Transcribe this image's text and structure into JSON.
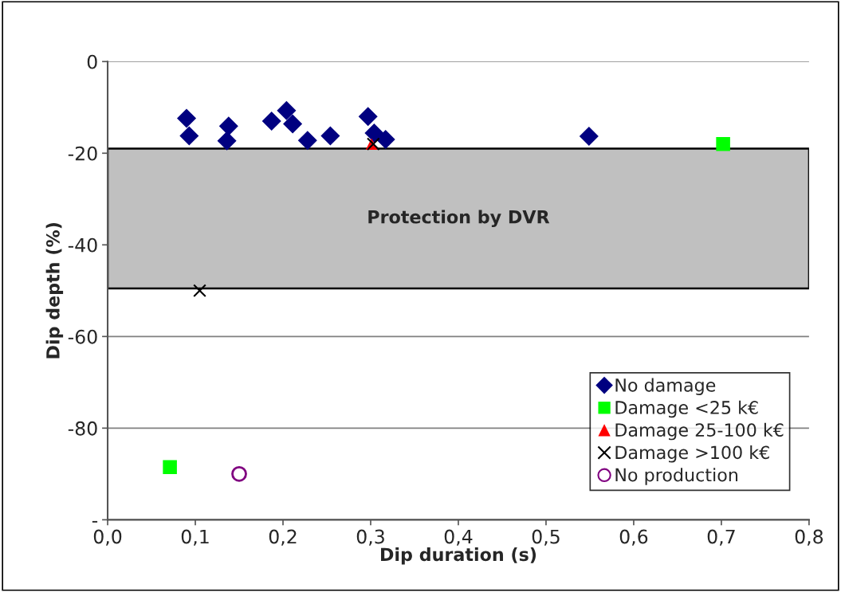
{
  "chart_data": {
    "type": "scatter",
    "xlabel": "Dip duration (s)",
    "ylabel": "Dip depth (%)",
    "xlim": [
      0,
      0.8
    ],
    "ylim": [
      -100,
      0
    ],
    "xticks": [
      {
        "value": 0,
        "label": "0,0"
      },
      {
        "value": 0.1,
        "label": "0,1"
      },
      {
        "value": 0.2,
        "label": "0,2"
      },
      {
        "value": 0.3,
        "label": "0,3"
      },
      {
        "value": 0.4,
        "label": "0,4"
      },
      {
        "value": 0.5,
        "label": "0,5"
      },
      {
        "value": 0.6,
        "label": "0,6"
      },
      {
        "value": 0.7,
        "label": "0,7"
      },
      {
        "value": 0.8,
        "label": "0,8"
      }
    ],
    "yticks": [
      0,
      -20,
      -40,
      -60,
      -80,
      {
        "value": -100,
        "label": "-"
      }
    ],
    "grid": "y",
    "legend": "bottom right",
    "bands": [
      {
        "axis": "y",
        "from": -49.5,
        "to": -19,
        "label": "Protection by DVR",
        "color": "#c0c0c0"
      }
    ],
    "series": [
      {
        "name": "No damage",
        "color": "#000080",
        "marker": "diamond",
        "x": [
          0.09,
          0.093,
          0.138,
          0.136,
          0.187,
          0.204,
          0.211,
          0.228,
          0.254,
          0.297,
          0.304,
          0.317,
          0.549
        ],
        "values": [
          -12.4,
          -16.2,
          -14.1,
          -17.3,
          -13.0,
          -10.7,
          -13.6,
          -17.2,
          -16.2,
          -12.0,
          -15.6,
          -17.0,
          -16.3
        ]
      },
      {
        "name": "Damage <25 k€",
        "color": "#00ff00",
        "marker": "square",
        "x": [
          0.702,
          0.071
        ],
        "values": [
          -18,
          -88.5
        ]
      },
      {
        "name": "Damage 25-100 k€",
        "color": "#ff0000",
        "marker": "triangle",
        "x": [
          0.301
        ],
        "values": [
          -18
        ]
      },
      {
        "name": "Damage >100 k€",
        "color": "#000000",
        "marker": "cross",
        "x": [
          0.303,
          0.105
        ],
        "values": [
          -18,
          -50
        ]
      },
      {
        "name": "No production",
        "color": "#800080",
        "marker": "circle",
        "x": [
          0.15
        ],
        "values": [
          -90
        ]
      }
    ]
  }
}
